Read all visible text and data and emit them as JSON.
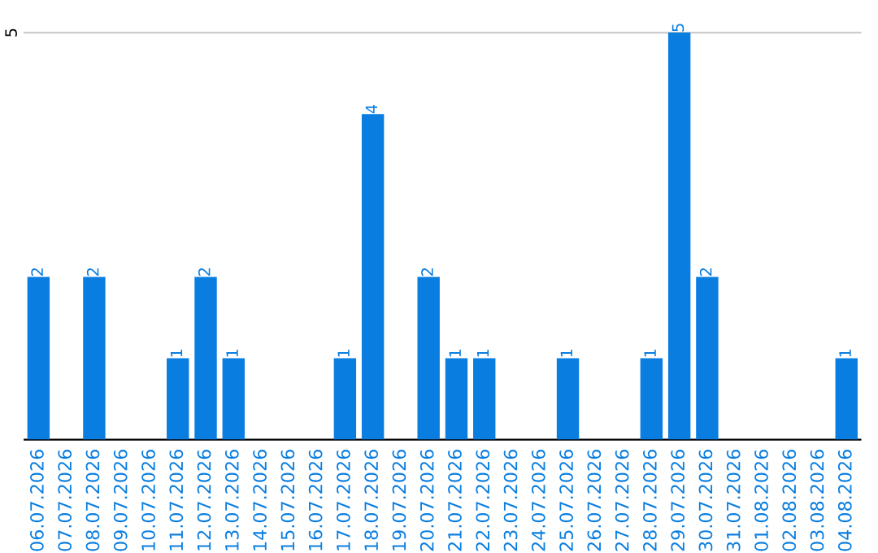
{
  "chart_data": {
    "type": "bar",
    "categories": [
      "06.07.2026",
      "07.07.2026",
      "08.07.2026",
      "09.07.2026",
      "10.07.2026",
      "11.07.2026",
      "12.07.2026",
      "13.07.2026",
      "14.07.2026",
      "15.07.2026",
      "16.07.2026",
      "17.07.2026",
      "18.07.2026",
      "19.07.2026",
      "20.07.2026",
      "21.07.2026",
      "22.07.2026",
      "23.07.2026",
      "24.07.2026",
      "25.07.2026",
      "26.07.2026",
      "27.07.2026",
      "28.07.2026",
      "29.07.2026",
      "30.07.2026",
      "31.07.2026",
      "01.08.2026",
      "02.08.2026",
      "03.08.2026",
      "04.08.2026"
    ],
    "values": [
      2,
      0,
      2,
      0,
      0,
      1,
      2,
      1,
      0,
      0,
      0,
      1,
      4,
      0,
      2,
      1,
      1,
      0,
      0,
      1,
      0,
      0,
      1,
      5,
      2,
      0,
      0,
      0,
      0,
      1
    ],
    "value_labels": [
      "2",
      null,
      "2",
      null,
      null,
      "1",
      "2",
      "1",
      null,
      null,
      null,
      "1",
      "4",
      null,
      "2",
      "1",
      "1",
      null,
      null,
      "1",
      null,
      null,
      "1",
      "5",
      "2",
      null,
      null,
      null,
      null,
      "1"
    ],
    "color": "#0a7ee0",
    "ylim": [
      0,
      5
    ],
    "yticks": [
      5
    ]
  }
}
